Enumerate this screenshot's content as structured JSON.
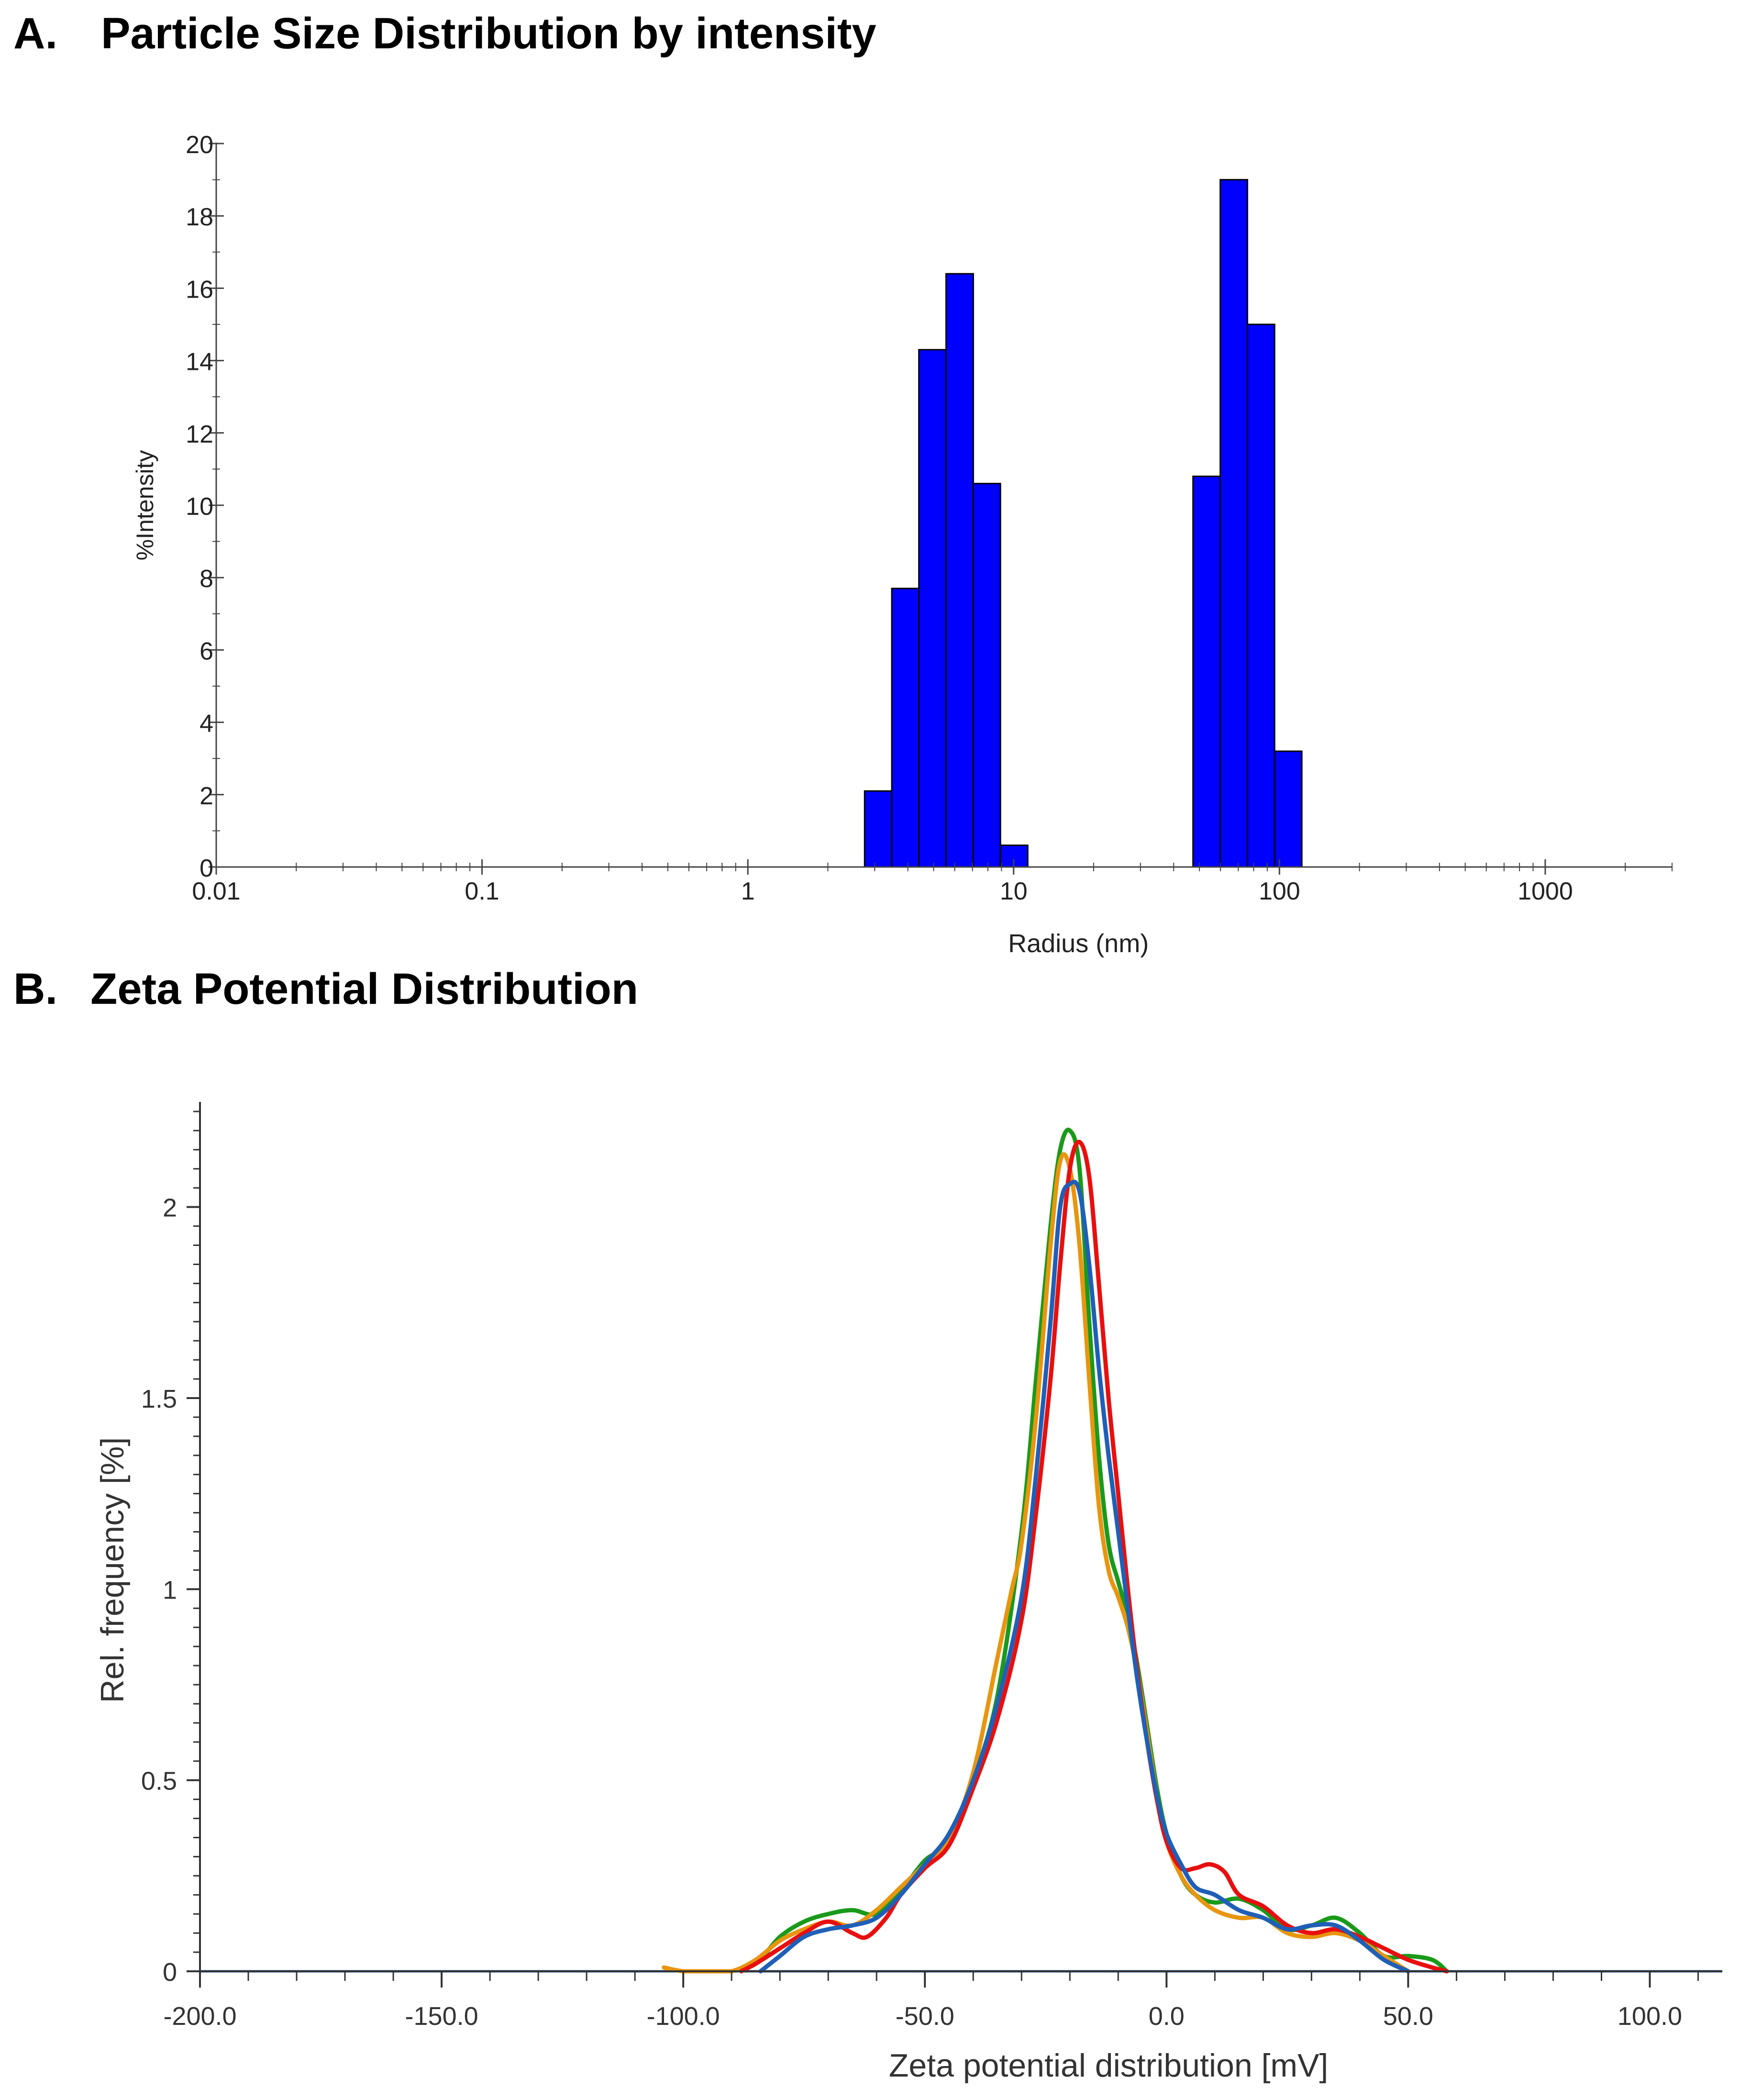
{
  "panels": {
    "a": {
      "label": "A.",
      "title": "Particle Size Distribution by intensity"
    },
    "b": {
      "label": "B.",
      "title": "Zeta Potential Distribution"
    }
  },
  "chart_data": [
    {
      "type": "bar",
      "title": "Particle Size Distribution by intensity",
      "xlabel": "Radius (nm)",
      "ylabel": "%Intensity",
      "xscale": "log",
      "xlim": [
        0.01,
        3000
      ],
      "ylim": [
        0,
        20
      ],
      "x_ticks": [
        0.01,
        0.1,
        1,
        10,
        100,
        1000
      ],
      "x_tick_labels": [
        "0.01",
        "0.1",
        "1",
        "10",
        "100",
        "1000"
      ],
      "y_ticks": [
        0,
        2,
        4,
        6,
        8,
        10,
        12,
        14,
        16,
        18,
        20
      ],
      "y_tick_labels": [
        "0",
        "2",
        "4",
        "6",
        "8",
        "10",
        "12",
        "14",
        "16",
        "18",
        "20"
      ],
      "bar_color": "#0000ff",
      "bins": [
        {
          "from": 2.75,
          "to": 3.48,
          "value": 2.1
        },
        {
          "from": 3.48,
          "to": 4.4,
          "value": 7.7
        },
        {
          "from": 4.4,
          "to": 5.57,
          "value": 14.3
        },
        {
          "from": 5.57,
          "to": 7.05,
          "value": 16.4
        },
        {
          "from": 7.05,
          "to": 8.92,
          "value": 10.6
        },
        {
          "from": 8.92,
          "to": 11.3,
          "value": 0.6
        },
        {
          "from": 47.3,
          "to": 59.9,
          "value": 10.8
        },
        {
          "from": 59.9,
          "to": 75.8,
          "value": 19.0
        },
        {
          "from": 75.8,
          "to": 95.9,
          "value": 15.0
        },
        {
          "from": 95.9,
          "to": 121.4,
          "value": 3.2
        }
      ],
      "grid": false,
      "legend": "none"
    },
    {
      "type": "line",
      "title": "Zeta Potential Distribution",
      "xlabel": "Zeta potential distribution [mV]",
      "ylabel": "Rel. frequency [%]",
      "xlim": [
        -200,
        115
      ],
      "ylim": [
        0,
        2.25
      ],
      "x_ticks": [
        -200,
        -150,
        -100,
        -50,
        0,
        50,
        100
      ],
      "x_tick_labels": [
        "-200.0",
        "-150.0",
        "-100.0",
        "-50.0",
        "0.0",
        "50.0",
        "100.0"
      ],
      "y_ticks": [
        0,
        0.5,
        1,
        1.5,
        2
      ],
      "y_tick_labels": [
        "0",
        "0.5",
        "1",
        "1.5",
        "2"
      ],
      "grid": false,
      "legend": "none",
      "series": [
        {
          "color": "#1a9a1a",
          "x": [
            -90,
            -85,
            -80,
            -75,
            -70,
            -65,
            -60,
            -55,
            -50,
            -45,
            -40,
            -35,
            -30,
            -27,
            -24,
            -22,
            -20,
            -18,
            -16,
            -14,
            -12,
            -10,
            -8,
            -6,
            -4,
            -2,
            0,
            3,
            6,
            10,
            15,
            20,
            25,
            30,
            35,
            40,
            45,
            50,
            55,
            58
          ],
          "y": [
            0,
            0.02,
            0.09,
            0.13,
            0.15,
            0.16,
            0.15,
            0.21,
            0.29,
            0.34,
            0.5,
            0.72,
            1.15,
            1.55,
            1.95,
            2.15,
            2.2,
            2.1,
            1.7,
            1.35,
            1.12,
            1.02,
            0.93,
            0.8,
            0.64,
            0.48,
            0.36,
            0.25,
            0.2,
            0.18,
            0.19,
            0.16,
            0.11,
            0.12,
            0.14,
            0.1,
            0.04,
            0.04,
            0.03,
            0
          ]
        },
        {
          "color": "#e8950f",
          "x": [
            -104,
            -100,
            -95,
            -90,
            -85,
            -80,
            -75,
            -70,
            -65,
            -60,
            -55,
            -50,
            -45,
            -40,
            -35,
            -32,
            -30,
            -27,
            -24,
            -22,
            -20,
            -18,
            -16,
            -14,
            -12,
            -10,
            -8,
            -6,
            -4,
            -2,
            0,
            3,
            6,
            10,
            15,
            20,
            25,
            30,
            35,
            40,
            45,
            50
          ],
          "y": [
            0.01,
            0,
            0,
            0,
            0.03,
            0.08,
            0.11,
            0.13,
            0.12,
            0.16,
            0.22,
            0.28,
            0.35,
            0.52,
            0.82,
            1.0,
            1.12,
            1.45,
            1.9,
            2.12,
            2.1,
            1.9,
            1.55,
            1.22,
            1.05,
            0.98,
            0.9,
            0.78,
            0.62,
            0.46,
            0.34,
            0.25,
            0.2,
            0.16,
            0.14,
            0.14,
            0.1,
            0.09,
            0.1,
            0.08,
            0.04,
            0
          ]
        },
        {
          "color": "#e80f0f",
          "x": [
            -88,
            -85,
            -80,
            -75,
            -70,
            -65,
            -62,
            -58,
            -55,
            -50,
            -45,
            -40,
            -35,
            -30,
            -27,
            -24,
            -22,
            -20,
            -18,
            -16,
            -14,
            -12,
            -10,
            -8,
            -6,
            -4,
            -2,
            0,
            3,
            6,
            9,
            12,
            15,
            20,
            25,
            30,
            35,
            40,
            45,
            50,
            55,
            58
          ],
          "y": [
            0,
            0.02,
            0.06,
            0.1,
            0.13,
            0.1,
            0.09,
            0.14,
            0.2,
            0.27,
            0.33,
            0.48,
            0.66,
            0.92,
            1.2,
            1.55,
            1.85,
            2.1,
            2.17,
            2.08,
            1.8,
            1.5,
            1.25,
            1.0,
            0.78,
            0.6,
            0.45,
            0.34,
            0.27,
            0.27,
            0.28,
            0.26,
            0.2,
            0.17,
            0.12,
            0.1,
            0.11,
            0.09,
            0.06,
            0.03,
            0.01,
            0
          ]
        },
        {
          "color": "#1f5fb8",
          "x": [
            -84,
            -80,
            -75,
            -70,
            -65,
            -60,
            -55,
            -50,
            -45,
            -40,
            -35,
            -30,
            -27,
            -24,
            -22,
            -20,
            -18,
            -16,
            -14,
            -12,
            -10,
            -8,
            -6,
            -4,
            -2,
            0,
            3,
            6,
            10,
            15,
            20,
            25,
            30,
            35,
            40,
            45,
            50
          ],
          "y": [
            0,
            0.04,
            0.09,
            0.11,
            0.12,
            0.14,
            0.2,
            0.28,
            0.36,
            0.5,
            0.7,
            0.98,
            1.3,
            1.7,
            2.0,
            2.06,
            2.04,
            1.85,
            1.58,
            1.35,
            1.15,
            0.95,
            0.76,
            0.6,
            0.46,
            0.36,
            0.28,
            0.22,
            0.2,
            0.16,
            0.14,
            0.11,
            0.12,
            0.12,
            0.08,
            0.03,
            0
          ]
        }
      ]
    }
  ]
}
